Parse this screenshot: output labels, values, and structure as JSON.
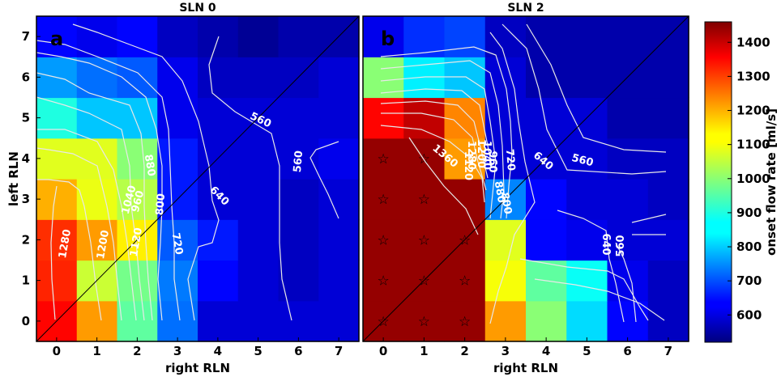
{
  "chart_data": [
    {
      "type": "heatmap",
      "title": "SLN 0",
      "panel_label": "a",
      "xlabel": "right RLN",
      "ylabel": "left RLN",
      "x": [
        0,
        1,
        2,
        3,
        4,
        5,
        6,
        7
      ],
      "y": [
        0,
        1,
        2,
        3,
        4,
        5,
        6,
        7
      ],
      "xlim": [
        -0.5,
        7.5
      ],
      "ylim": [
        -0.5,
        7.5
      ],
      "rows_from_y0": [
        [
          1340,
          1200,
          960,
          740,
          600,
          600,
          600,
          600
        ],
        [
          1310,
          1060,
          980,
          750,
          640,
          600,
          580,
          600
        ],
        [
          1300,
          1200,
          1120,
          720,
          660,
          600,
          580,
          600
        ],
        [
          1180,
          1090,
          1040,
          660,
          600,
          600,
          580,
          600
        ],
        [
          1080,
          1080,
          1000,
          660,
          600,
          600,
          600,
          620
        ],
        [
          900,
          820,
          820,
          620,
          600,
          600,
          600,
          600
        ],
        [
          780,
          740,
          720,
          620,
          580,
          580,
          580,
          600
        ],
        [
          640,
          620,
          640,
          580,
          560,
          540,
          560,
          560
        ]
      ],
      "contour_labels": [
        "1280",
        "1200",
        "1120",
        "1040",
        "960",
        "880",
        "800",
        "720",
        "640",
        "560",
        "560"
      ],
      "stars": []
    },
    {
      "type": "heatmap",
      "title": "SLN 2",
      "panel_label": "b",
      "xlabel": "right RLN",
      "ylabel": "",
      "x": [
        0,
        1,
        2,
        3,
        4,
        5,
        6,
        7
      ],
      "y": [
        0,
        1,
        2,
        3,
        4,
        5,
        6,
        7
      ],
      "xlim": [
        -0.5,
        7.5
      ],
      "ylim": [
        -0.5,
        7.5
      ],
      "rows_from_y0": [
        [
          1440,
          1440,
          1440,
          1200,
          1000,
          840,
          640,
          580
        ],
        [
          1440,
          1440,
          1440,
          1100,
          960,
          880,
          620,
          580
        ],
        [
          1440,
          1440,
          1440,
          1080,
          640,
          620,
          600,
          600
        ],
        [
          1440,
          1440,
          1440,
          760,
          640,
          600,
          600,
          580
        ],
        [
          1440,
          1440,
          1200,
          600,
          600,
          600,
          580,
          580
        ],
        [
          1340,
          1400,
          1220,
          600,
          600,
          600,
          560,
          560
        ],
        [
          1000,
          860,
          820,
          600,
          560,
          560,
          560,
          560
        ],
        [
          620,
          680,
          700,
          580,
          560,
          560,
          560,
          560
        ]
      ],
      "contour_labels": [
        "1360",
        "1280",
        "1200",
        "1120",
        "1040",
        "960",
        "880",
        "800",
        "720",
        "640",
        "640",
        "560",
        "560"
      ],
      "stars": [
        [
          0,
          0
        ],
        [
          1,
          0
        ],
        [
          2,
          0
        ],
        [
          0,
          1
        ],
        [
          1,
          1
        ],
        [
          2,
          1
        ],
        [
          0,
          2
        ],
        [
          1,
          2
        ],
        [
          2,
          2
        ],
        [
          0,
          3
        ],
        [
          1,
          3
        ],
        [
          0,
          4
        ],
        [
          1,
          4
        ]
      ]
    }
  ],
  "colorbar": {
    "label": "onset flow rate [ml/s]",
    "vmin": 520,
    "vmax": 1460,
    "ticks": [
      "600",
      "700",
      "800",
      "900",
      "1000",
      "1100",
      "1200",
      "1300",
      "1400"
    ],
    "colormap": "jet"
  }
}
